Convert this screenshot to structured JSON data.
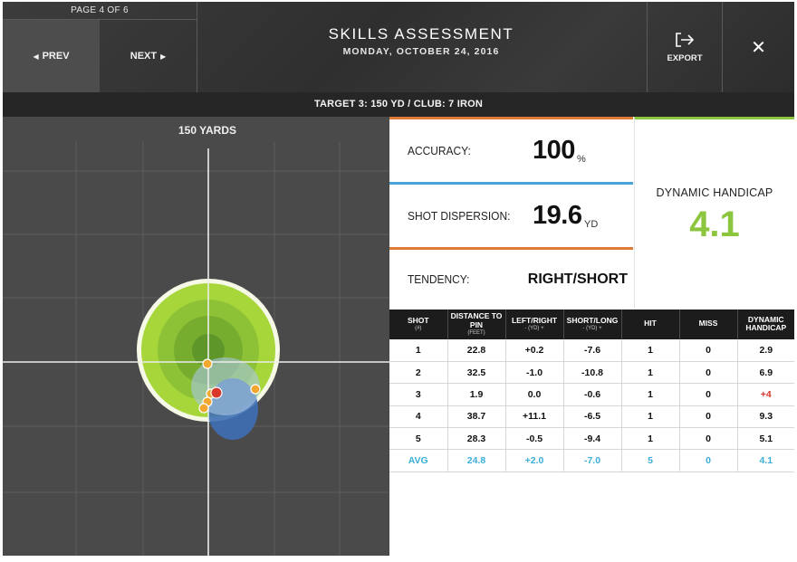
{
  "header": {
    "page_indicator": "PAGE 4 OF 6",
    "prev_label": "PREV",
    "next_label": "NEXT",
    "title": "SKILLS ASSESSMENT",
    "date": "MONDAY, OCTOBER 24, 2016",
    "export_label": "EXPORT",
    "icons": {
      "prev": "triangle-left-icon",
      "next": "triangle-right-icon",
      "export": "export-arrow-icon",
      "close": "close-icon"
    }
  },
  "target_bar": {
    "text": "TARGET 3: 150 YD / CLUB: 7 IRON"
  },
  "chart": {
    "label": "150 YARDS",
    "colors": {
      "target_green": "#a6d63a",
      "dispersion_blue": "#3f6fb5",
      "shot_marker": "#f2a72e",
      "avg_marker": "#d9372b"
    }
  },
  "stats": {
    "accuracy": {
      "label": "ACCURACY:",
      "value": "100",
      "unit": "%"
    },
    "dispersion": {
      "label": "SHOT DISPERSION:",
      "value": "19.6",
      "unit": "YD"
    },
    "tendency": {
      "label": "TENDENCY:",
      "value": "RIGHT/SHORT"
    },
    "handicap": {
      "label": "DYNAMIC HANDICAP",
      "value": "4.1"
    },
    "colors": {
      "orange": "#dd7a35",
      "blue": "#4aa3d8",
      "green": "#8cc63f"
    }
  },
  "table": {
    "headers": [
      {
        "main": "SHOT",
        "sub": "(#)"
      },
      {
        "main": "DISTANCE TO PIN",
        "sub": "(FEET)"
      },
      {
        "main": "LEFT/RIGHT",
        "sub": "- (YD) +"
      },
      {
        "main": "SHORT/LONG",
        "sub": "- (YD) +"
      },
      {
        "main": "HIT",
        "sub": ""
      },
      {
        "main": "MISS",
        "sub": ""
      },
      {
        "main": "DYNAMIC HANDICAP",
        "sub": ""
      }
    ],
    "rows": [
      [
        "1",
        "22.8",
        "+0.2",
        "-7.6",
        "1",
        "0",
        "2.9"
      ],
      [
        "2",
        "32.5",
        "-1.0",
        "-10.8",
        "1",
        "0",
        "6.9"
      ],
      [
        "3",
        "1.9",
        "0.0",
        "-0.6",
        "1",
        "0",
        "+4"
      ],
      [
        "4",
        "38.7",
        "+11.1",
        "-6.5",
        "1",
        "0",
        "9.3"
      ],
      [
        "5",
        "28.3",
        "-0.5",
        "-9.4",
        "1",
        "0",
        "5.1"
      ]
    ],
    "avg": [
      "AVG",
      "24.8",
      "+2.0",
      "-7.0",
      "5",
      "0",
      "4.1"
    ]
  }
}
